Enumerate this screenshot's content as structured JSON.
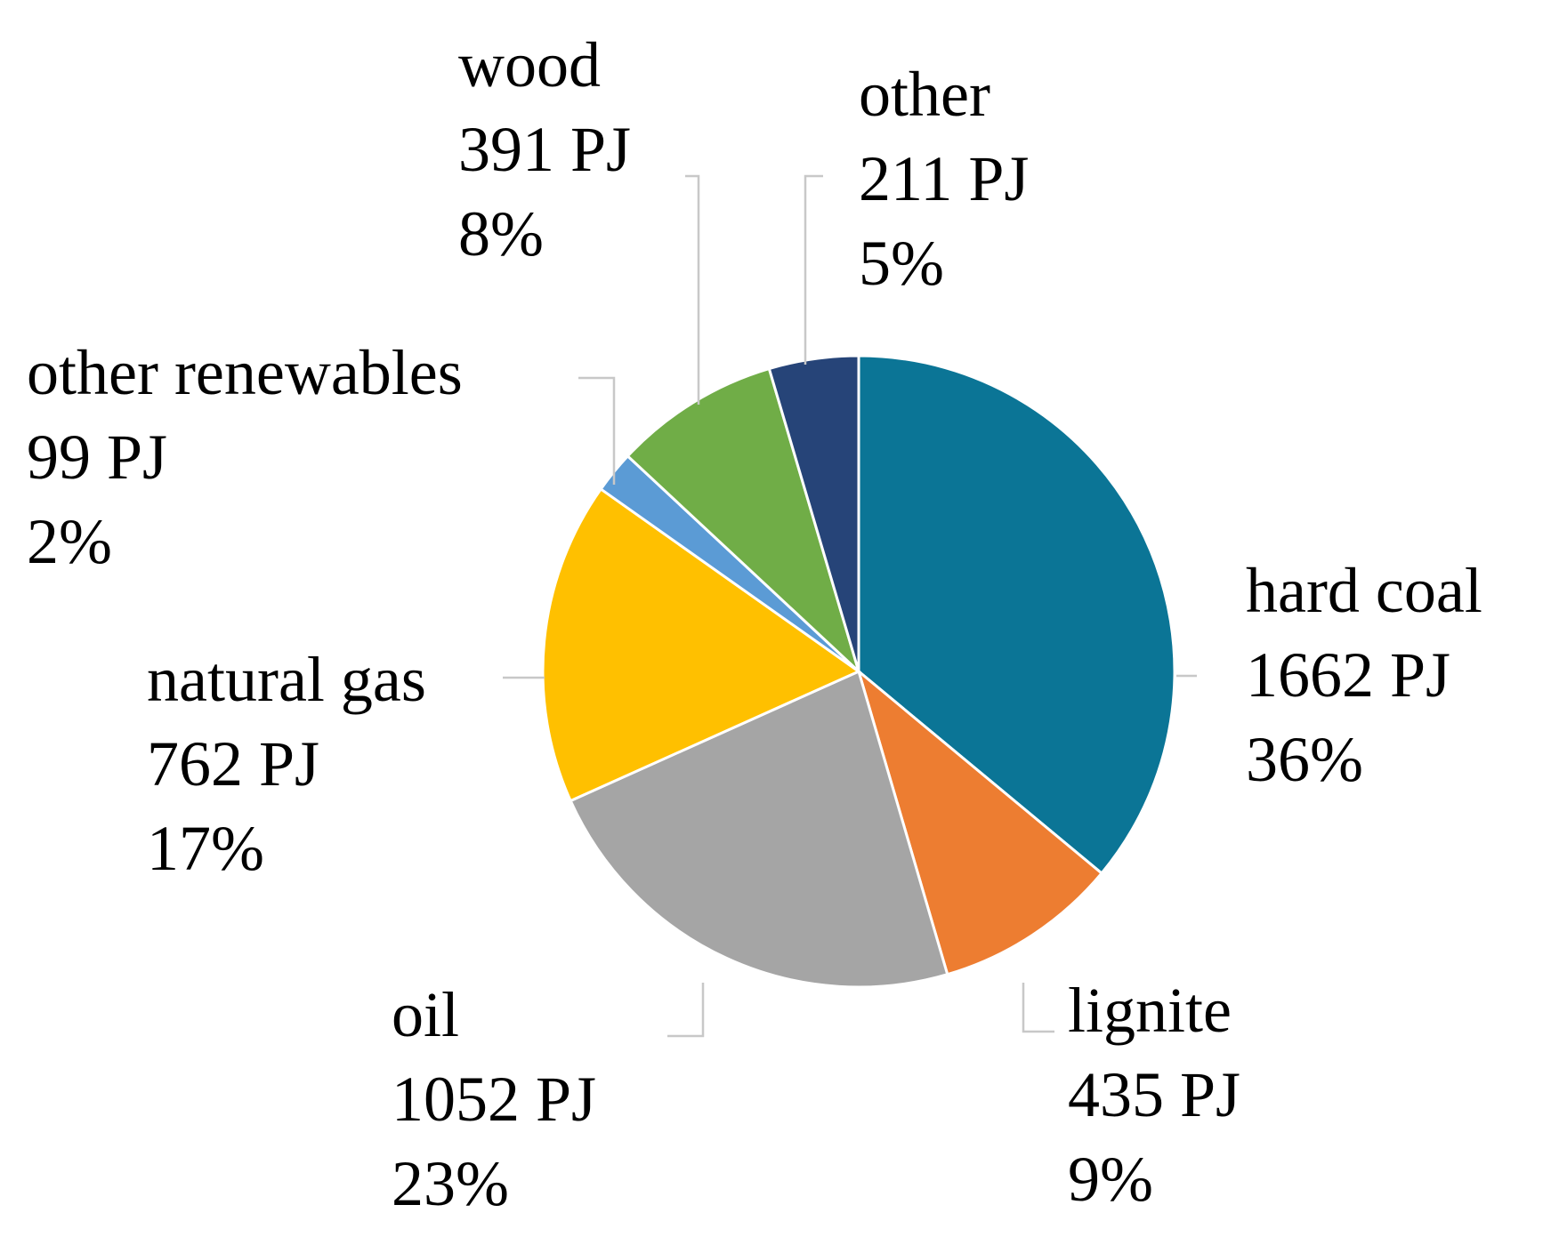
{
  "chart_data": {
    "type": "pie",
    "title": "",
    "unit": "PJ",
    "slices": [
      {
        "name": "hard coal",
        "value": 1662,
        "value_label": "1662 PJ",
        "percent_label": "36%",
        "color": "#0B7596"
      },
      {
        "name": "lignite",
        "value": 435,
        "value_label": "435 PJ",
        "percent_label": "9%",
        "color": "#ED7D31"
      },
      {
        "name": "oil",
        "value": 1052,
        "value_label": "1052 PJ",
        "percent_label": "23%",
        "color": "#A5A5A5"
      },
      {
        "name": "natural gas",
        "value": 762,
        "value_label": "762 PJ",
        "percent_label": "17%",
        "color": "#FFC000"
      },
      {
        "name": "other renewables",
        "value": 99,
        "value_label": "99 PJ",
        "percent_label": "2%",
        "color": "#5B9BD5"
      },
      {
        "name": "wood",
        "value": 391,
        "value_label": "391 PJ",
        "percent_label": "8%",
        "color": "#70AD47"
      },
      {
        "name": "other",
        "value": 211,
        "value_label": "211 PJ",
        "percent_label": "5%",
        "color": "#264478"
      }
    ]
  }
}
